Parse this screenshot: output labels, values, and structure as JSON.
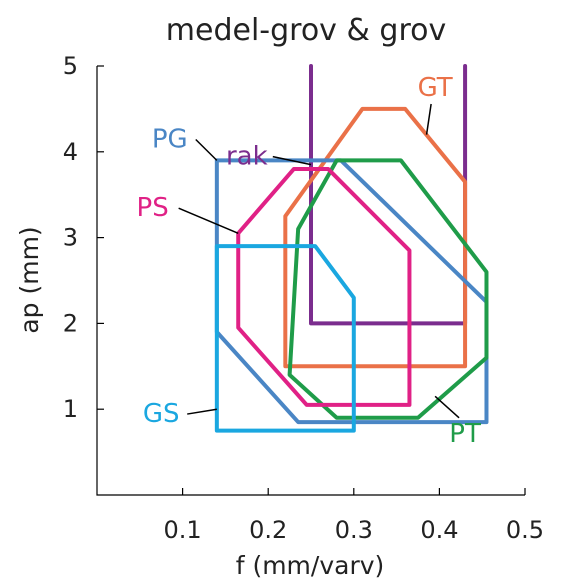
{
  "chart_data": {
    "type": "area",
    "title": "medel-grov & grov",
    "xlabel": "f  (mm/varv)",
    "ylabel": "ap (mm)",
    "xlim": [
      0,
      0.5
    ],
    "ylim": [
      0,
      5
    ],
    "x_ticks": [
      "0.1",
      "0.2",
      "0.3",
      "0.4",
      "0.5"
    ],
    "y_ticks": [
      "1",
      "2",
      "3",
      "4",
      "5"
    ],
    "grid": false,
    "regions": [
      {
        "name": "rak",
        "color": "#7b2d8e",
        "points": [
          [
            0.25,
            5.0
          ],
          [
            0.25,
            2.0
          ],
          [
            0.43,
            2.0
          ],
          [
            0.43,
            5.0
          ]
        ],
        "closed": false,
        "label_pos": [
          0.175,
          3.85
        ],
        "leader_to": [
          0.25,
          3.85
        ]
      },
      {
        "name": "GT",
        "color": "#ea7148",
        "points": [
          [
            0.22,
            3.25
          ],
          [
            0.31,
            4.5
          ],
          [
            0.36,
            4.5
          ],
          [
            0.43,
            3.65
          ],
          [
            0.43,
            1.5
          ],
          [
            0.22,
            1.5
          ]
        ],
        "closed": true,
        "label_pos": [
          0.395,
          4.65
        ],
        "leader_to": [
          0.385,
          4.2
        ]
      },
      {
        "name": "PG",
        "color": "#4a86c5",
        "points": [
          [
            0.14,
            3.9
          ],
          [
            0.285,
            3.9
          ],
          [
            0.455,
            2.25
          ],
          [
            0.455,
            0.85
          ],
          [
            0.235,
            0.85
          ],
          [
            0.14,
            1.9
          ]
        ],
        "closed": true,
        "label_pos": [
          0.085,
          4.05
        ],
        "leader_to": [
          0.14,
          3.9
        ]
      },
      {
        "name": "GT_PT",
        "color": "#1f9c49",
        "points": [
          [
            0.235,
            3.1
          ],
          [
            0.28,
            3.9
          ],
          [
            0.355,
            3.9
          ],
          [
            0.455,
            2.6
          ],
          [
            0.455,
            1.6
          ],
          [
            0.375,
            0.9
          ],
          [
            0.28,
            0.9
          ],
          [
            0.225,
            1.4
          ]
        ],
        "closed": true,
        "label_pos": [
          0.43,
          0.62
        ],
        "leader_to": [
          0.395,
          1.15
        ]
      },
      {
        "name": "PS",
        "color": "#e02186",
        "points": [
          [
            0.165,
            3.05
          ],
          [
            0.23,
            3.8
          ],
          [
            0.27,
            3.8
          ],
          [
            0.365,
            2.85
          ],
          [
            0.365,
            1.05
          ],
          [
            0.245,
            1.05
          ],
          [
            0.165,
            1.95
          ]
        ],
        "closed": true,
        "label_pos": [
          0.065,
          3.25
        ],
        "leader_to": [
          0.165,
          3.05
        ]
      },
      {
        "name": "GS",
        "color": "#1aa7e0",
        "points": [
          [
            0.14,
            2.9
          ],
          [
            0.255,
            2.9
          ],
          [
            0.3,
            2.3
          ],
          [
            0.3,
            0.75
          ],
          [
            0.14,
            0.75
          ]
        ],
        "closed": true,
        "label_pos": [
          0.075,
          0.85
        ],
        "leader_to": [
          0.14,
          1.0
        ]
      }
    ],
    "labels": [
      "rak",
      "GT",
      "PG",
      "PT",
      "PS",
      "GS"
    ]
  }
}
